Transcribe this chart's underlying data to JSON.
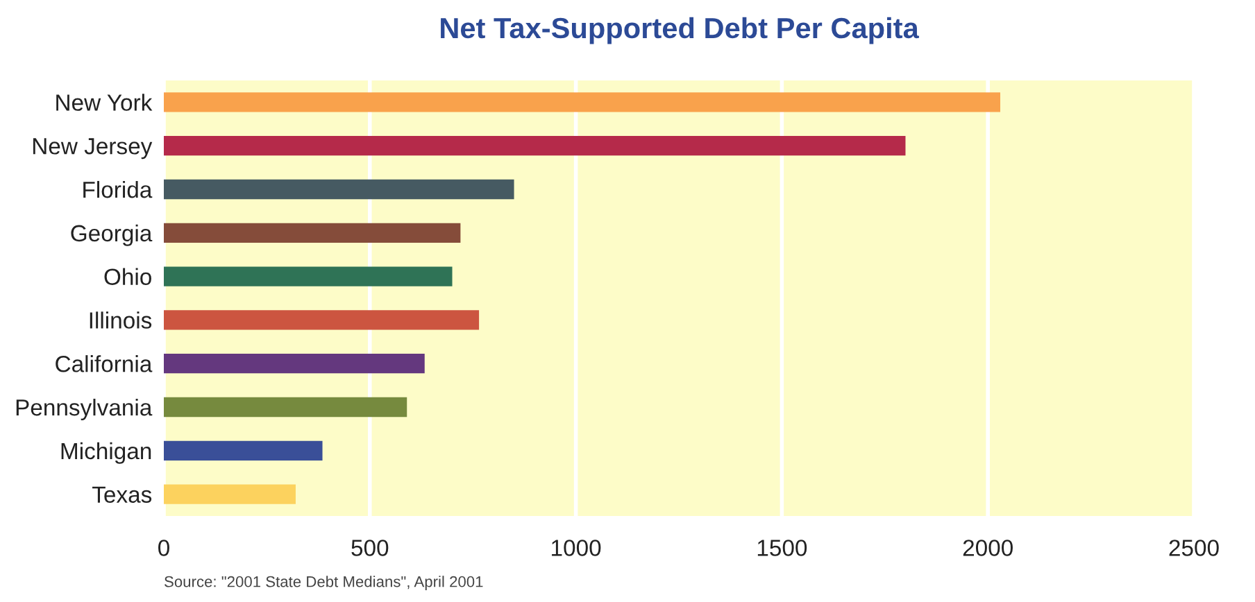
{
  "chart_data": {
    "type": "bar",
    "orientation": "horizontal",
    "title": "Net Tax-Supported Debt Per Capita",
    "categories": [
      "New York",
      "New Jersey",
      "Florida",
      "Georgia",
      "Ohio",
      "Illinois",
      "California",
      "Pennsylvania",
      "Michigan",
      "Texas"
    ],
    "values": [
      2030,
      1800,
      850,
      720,
      700,
      765,
      633,
      590,
      385,
      320
    ],
    "colors": [
      "#f9a24c",
      "#b52a4a",
      "#465a62",
      "#854c3a",
      "#2f7356",
      "#cc5540",
      "#64387e",
      "#768a3e",
      "#3a4f98",
      "#fcd25e"
    ],
    "xlim": [
      0,
      2500
    ],
    "xticks": [
      0,
      500,
      1000,
      1500,
      2000,
      2500
    ],
    "grid": "x",
    "annotations": [
      "Source: \"2001 State Debt Medians\", April 2001"
    ]
  }
}
